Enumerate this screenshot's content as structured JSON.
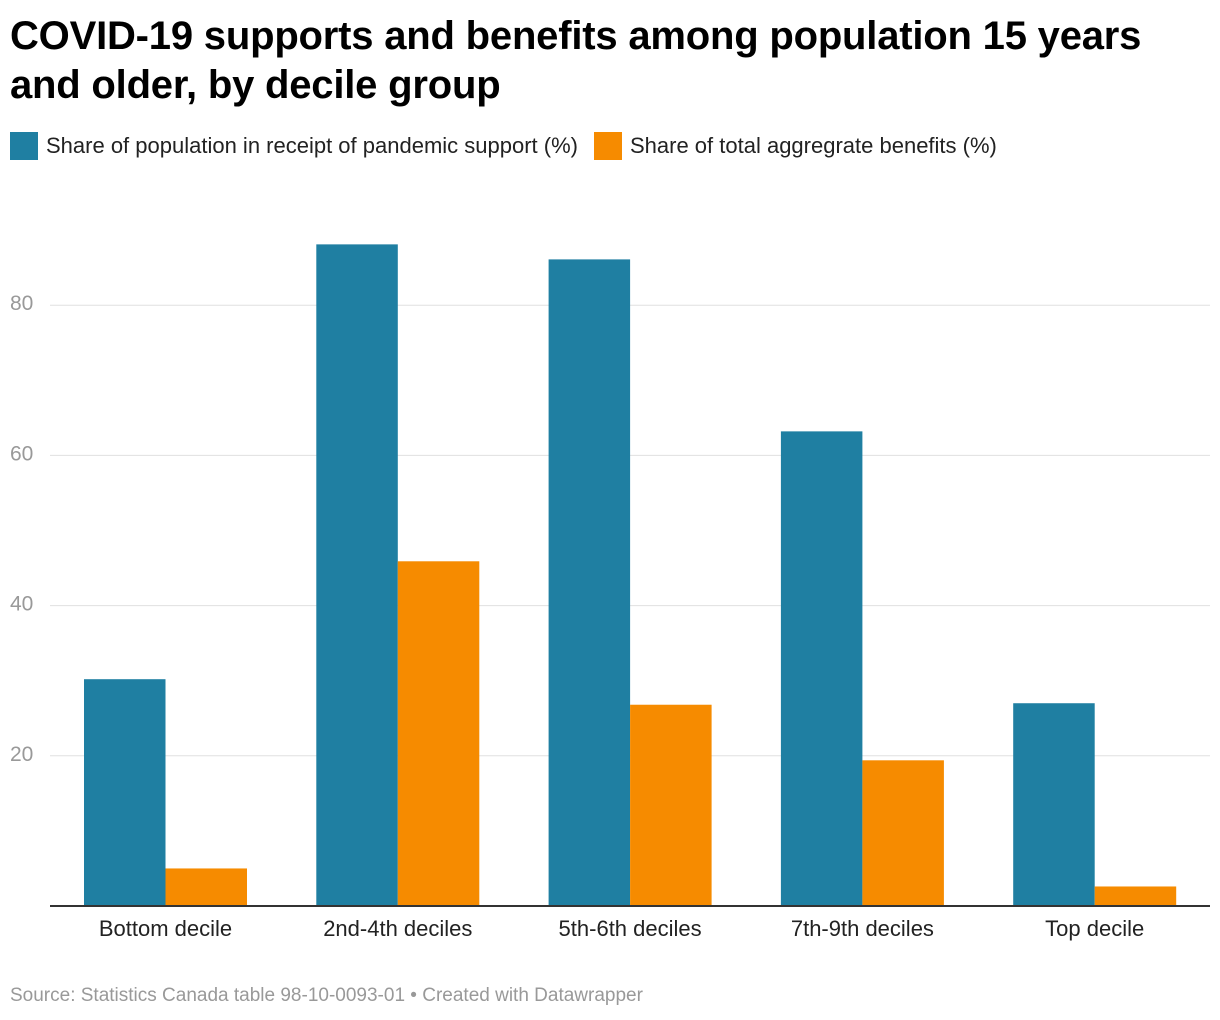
{
  "title": "COVID-19 supports and benefits among population 15 years and older, by decile group",
  "source": "Source: Statistics Canada table 98-10-0093-01 • Created with Datawrapper",
  "colors": {
    "series1": "#1f7fa2",
    "series2": "#f68b00",
    "grid": "#e0e0e0",
    "axis": "#333333",
    "tick": "#999999"
  },
  "chart_data": {
    "type": "bar",
    "title": "COVID-19 supports and benefits among population 15 years and older, by decile group",
    "categories": [
      "Bottom decile",
      "2nd-4th deciles",
      "5th-6th deciles",
      "7th-9th deciles",
      "Top decile"
    ],
    "series": [
      {
        "name": "Share of population in receipt of pandemic support (%)",
        "values": [
          30.2,
          88.1,
          86.1,
          63.2,
          27.0
        ]
      },
      {
        "name": "Share of total aggregrate benefits (%)",
        "values": [
          5.0,
          45.9,
          26.8,
          19.4,
          2.6
        ]
      }
    ],
    "yticks": [
      "20",
      "40",
      "60",
      "80"
    ],
    "ylim": [
      0,
      90
    ],
    "grid": true,
    "legend_position": "top-left"
  }
}
